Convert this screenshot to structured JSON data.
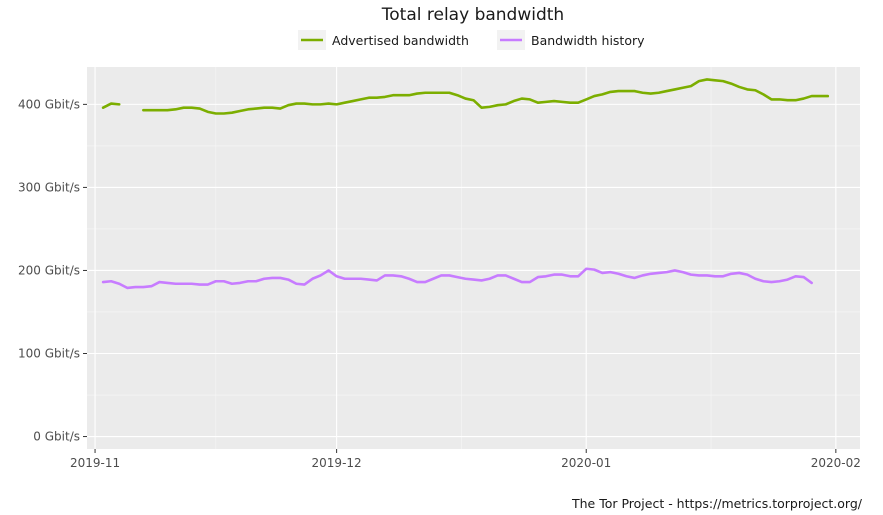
{
  "chart_data": {
    "type": "line",
    "title": "Total relay bandwidth",
    "xlabel": "",
    "ylabel": "",
    "credit": "The Tor Project - https://metrics.torproject.org/",
    "legend_position": "top",
    "grid": true,
    "y_unit": "Gbit/s",
    "ylim": [
      -15,
      445
    ],
    "xlim": [
      "2019-10-31",
      "2020-02-04"
    ],
    "y_ticks": [
      {
        "value": 0,
        "label": "0 Gbit/s"
      },
      {
        "value": 100,
        "label": "100 Gbit/s"
      },
      {
        "value": 200,
        "label": "200 Gbit/s"
      },
      {
        "value": 300,
        "label": "300 Gbit/s"
      },
      {
        "value": 400,
        "label": "400 Gbit/s"
      }
    ],
    "x_ticks": [
      {
        "date": "2019-11-01",
        "label": "2019-11"
      },
      {
        "date": "2019-12-01",
        "label": "2019-12"
      },
      {
        "date": "2020-01-01",
        "label": "2020-01"
      },
      {
        "date": "2020-02-01",
        "label": "2020-02"
      }
    ],
    "series": [
      {
        "name": "Advertised bandwidth",
        "color": "#7cae00",
        "segments": [
          [
            [
              "2019-11-02",
              396
            ],
            [
              "2019-11-03",
              401
            ],
            [
              "2019-11-04",
              400
            ]
          ],
          [
            [
              "2019-11-07",
              393
            ],
            [
              "2019-11-08",
              393
            ],
            [
              "2019-11-09",
              393
            ],
            [
              "2019-11-10",
              393
            ],
            [
              "2019-11-11",
              394
            ],
            [
              "2019-11-12",
              396
            ],
            [
              "2019-11-13",
              396
            ],
            [
              "2019-11-14",
              395
            ],
            [
              "2019-11-15",
              391
            ],
            [
              "2019-11-16",
              389
            ],
            [
              "2019-11-17",
              389
            ],
            [
              "2019-11-18",
              390
            ],
            [
              "2019-11-19",
              392
            ],
            [
              "2019-11-20",
              394
            ],
            [
              "2019-11-21",
              395
            ],
            [
              "2019-11-22",
              396
            ],
            [
              "2019-11-23",
              396
            ],
            [
              "2019-11-24",
              395
            ],
            [
              "2019-11-25",
              399
            ],
            [
              "2019-11-26",
              401
            ],
            [
              "2019-11-27",
              401
            ],
            [
              "2019-11-28",
              400
            ],
            [
              "2019-11-29",
              400
            ],
            [
              "2019-11-30",
              401
            ],
            [
              "2019-12-01",
              400
            ],
            [
              "2019-12-02",
              402
            ],
            [
              "2019-12-03",
              404
            ],
            [
              "2019-12-04",
              406
            ],
            [
              "2019-12-05",
              408
            ],
            [
              "2019-12-06",
              408
            ],
            [
              "2019-12-07",
              409
            ],
            [
              "2019-12-08",
              411
            ],
            [
              "2019-12-09",
              411
            ],
            [
              "2019-12-10",
              411
            ],
            [
              "2019-12-11",
              413
            ],
            [
              "2019-12-12",
              414
            ],
            [
              "2019-12-13",
              414
            ],
            [
              "2019-12-14",
              414
            ],
            [
              "2019-12-15",
              414
            ],
            [
              "2019-12-16",
              411
            ],
            [
              "2019-12-17",
              407
            ],
            [
              "2019-12-18",
              405
            ],
            [
              "2019-12-19",
              396
            ],
            [
              "2019-12-20",
              397
            ],
            [
              "2019-12-21",
              399
            ],
            [
              "2019-12-22",
              400
            ],
            [
              "2019-12-23",
              404
            ],
            [
              "2019-12-24",
              407
            ],
            [
              "2019-12-25",
              406
            ],
            [
              "2019-12-26",
              402
            ],
            [
              "2019-12-27",
              403
            ],
            [
              "2019-12-28",
              404
            ],
            [
              "2019-12-29",
              403
            ],
            [
              "2019-12-30",
              402
            ],
            [
              "2019-12-31",
              402
            ],
            [
              "2020-01-01",
              406
            ],
            [
              "2020-01-02",
              410
            ],
            [
              "2020-01-03",
              412
            ],
            [
              "2020-01-04",
              415
            ],
            [
              "2020-01-05",
              416
            ],
            [
              "2020-01-06",
              416
            ],
            [
              "2020-01-07",
              416
            ],
            [
              "2020-01-08",
              414
            ],
            [
              "2020-01-09",
              413
            ],
            [
              "2020-01-10",
              414
            ],
            [
              "2020-01-11",
              416
            ],
            [
              "2020-01-12",
              418
            ],
            [
              "2020-01-13",
              420
            ],
            [
              "2020-01-14",
              422
            ],
            [
              "2020-01-15",
              428
            ],
            [
              "2020-01-16",
              430
            ],
            [
              "2020-01-17",
              429
            ],
            [
              "2020-01-18",
              428
            ],
            [
              "2020-01-19",
              425
            ],
            [
              "2020-01-20",
              421
            ],
            [
              "2020-01-21",
              418
            ],
            [
              "2020-01-22",
              417
            ],
            [
              "2020-01-23",
              412
            ],
            [
              "2020-01-24",
              406
            ],
            [
              "2020-01-25",
              406
            ],
            [
              "2020-01-26",
              405
            ],
            [
              "2020-01-27",
              405
            ],
            [
              "2020-01-28",
              407
            ],
            [
              "2020-01-29",
              410
            ],
            [
              "2020-01-30",
              410
            ],
            [
              "2020-01-31",
              410
            ]
          ]
        ]
      },
      {
        "name": "Bandwidth history",
        "color": "#c77cff",
        "segments": [
          [
            [
              "2019-11-02",
              186
            ],
            [
              "2019-11-03",
              187
            ],
            [
              "2019-11-04",
              184
            ],
            [
              "2019-11-05",
              179
            ],
            [
              "2019-11-06",
              180
            ],
            [
              "2019-11-07",
              180
            ],
            [
              "2019-11-08",
              181
            ],
            [
              "2019-11-09",
              186
            ],
            [
              "2019-11-10",
              185
            ],
            [
              "2019-11-11",
              184
            ],
            [
              "2019-11-12",
              184
            ],
            [
              "2019-11-13",
              184
            ],
            [
              "2019-11-14",
              183
            ],
            [
              "2019-11-15",
              183
            ],
            [
              "2019-11-16",
              187
            ],
            [
              "2019-11-17",
              187
            ],
            [
              "2019-11-18",
              184
            ],
            [
              "2019-11-19",
              185
            ],
            [
              "2019-11-20",
              187
            ],
            [
              "2019-11-21",
              187
            ],
            [
              "2019-11-22",
              190
            ],
            [
              "2019-11-23",
              191
            ],
            [
              "2019-11-24",
              191
            ],
            [
              "2019-11-25",
              189
            ],
            [
              "2019-11-26",
              184
            ],
            [
              "2019-11-27",
              183
            ],
            [
              "2019-11-28",
              190
            ],
            [
              "2019-11-29",
              194
            ],
            [
              "2019-11-30",
              200
            ],
            [
              "2019-12-01",
              193
            ],
            [
              "2019-12-02",
              190
            ],
            [
              "2019-12-03",
              190
            ],
            [
              "2019-12-04",
              190
            ],
            [
              "2019-12-05",
              189
            ],
            [
              "2019-12-06",
              188
            ],
            [
              "2019-12-07",
              194
            ],
            [
              "2019-12-08",
              194
            ],
            [
              "2019-12-09",
              193
            ],
            [
              "2019-12-10",
              190
            ],
            [
              "2019-12-11",
              186
            ],
            [
              "2019-12-12",
              186
            ],
            [
              "2019-12-13",
              190
            ],
            [
              "2019-12-14",
              194
            ],
            [
              "2019-12-15",
              194
            ],
            [
              "2019-12-16",
              192
            ],
            [
              "2019-12-17",
              190
            ],
            [
              "2019-12-18",
              189
            ],
            [
              "2019-12-19",
              188
            ],
            [
              "2019-12-20",
              190
            ],
            [
              "2019-12-21",
              194
            ],
            [
              "2019-12-22",
              194
            ],
            [
              "2019-12-23",
              190
            ],
            [
              "2019-12-24",
              186
            ],
            [
              "2019-12-25",
              186
            ],
            [
              "2019-12-26",
              192
            ],
            [
              "2019-12-27",
              193
            ],
            [
              "2019-12-28",
              195
            ],
            [
              "2019-12-29",
              195
            ],
            [
              "2019-12-30",
              193
            ],
            [
              "2019-12-31",
              193
            ],
            [
              "2020-01-01",
              202
            ],
            [
              "2020-01-02",
              201
            ],
            [
              "2020-01-03",
              197
            ],
            [
              "2020-01-04",
              198
            ],
            [
              "2020-01-05",
              196
            ],
            [
              "2020-01-06",
              193
            ],
            [
              "2020-01-07",
              191
            ],
            [
              "2020-01-08",
              194
            ],
            [
              "2020-01-09",
              196
            ],
            [
              "2020-01-10",
              197
            ],
            [
              "2020-01-11",
              198
            ],
            [
              "2020-01-12",
              200
            ],
            [
              "2020-01-13",
              198
            ],
            [
              "2020-01-14",
              195
            ],
            [
              "2020-01-15",
              194
            ],
            [
              "2020-01-16",
              194
            ],
            [
              "2020-01-17",
              193
            ],
            [
              "2020-01-18",
              193
            ],
            [
              "2020-01-19",
              196
            ],
            [
              "2020-01-20",
              197
            ],
            [
              "2020-01-21",
              195
            ],
            [
              "2020-01-22",
              190
            ],
            [
              "2020-01-23",
              187
            ],
            [
              "2020-01-24",
              186
            ],
            [
              "2020-01-25",
              187
            ],
            [
              "2020-01-26",
              189
            ],
            [
              "2020-01-27",
              193
            ],
            [
              "2020-01-28",
              192
            ],
            [
              "2020-01-29",
              185
            ]
          ]
        ]
      }
    ]
  }
}
